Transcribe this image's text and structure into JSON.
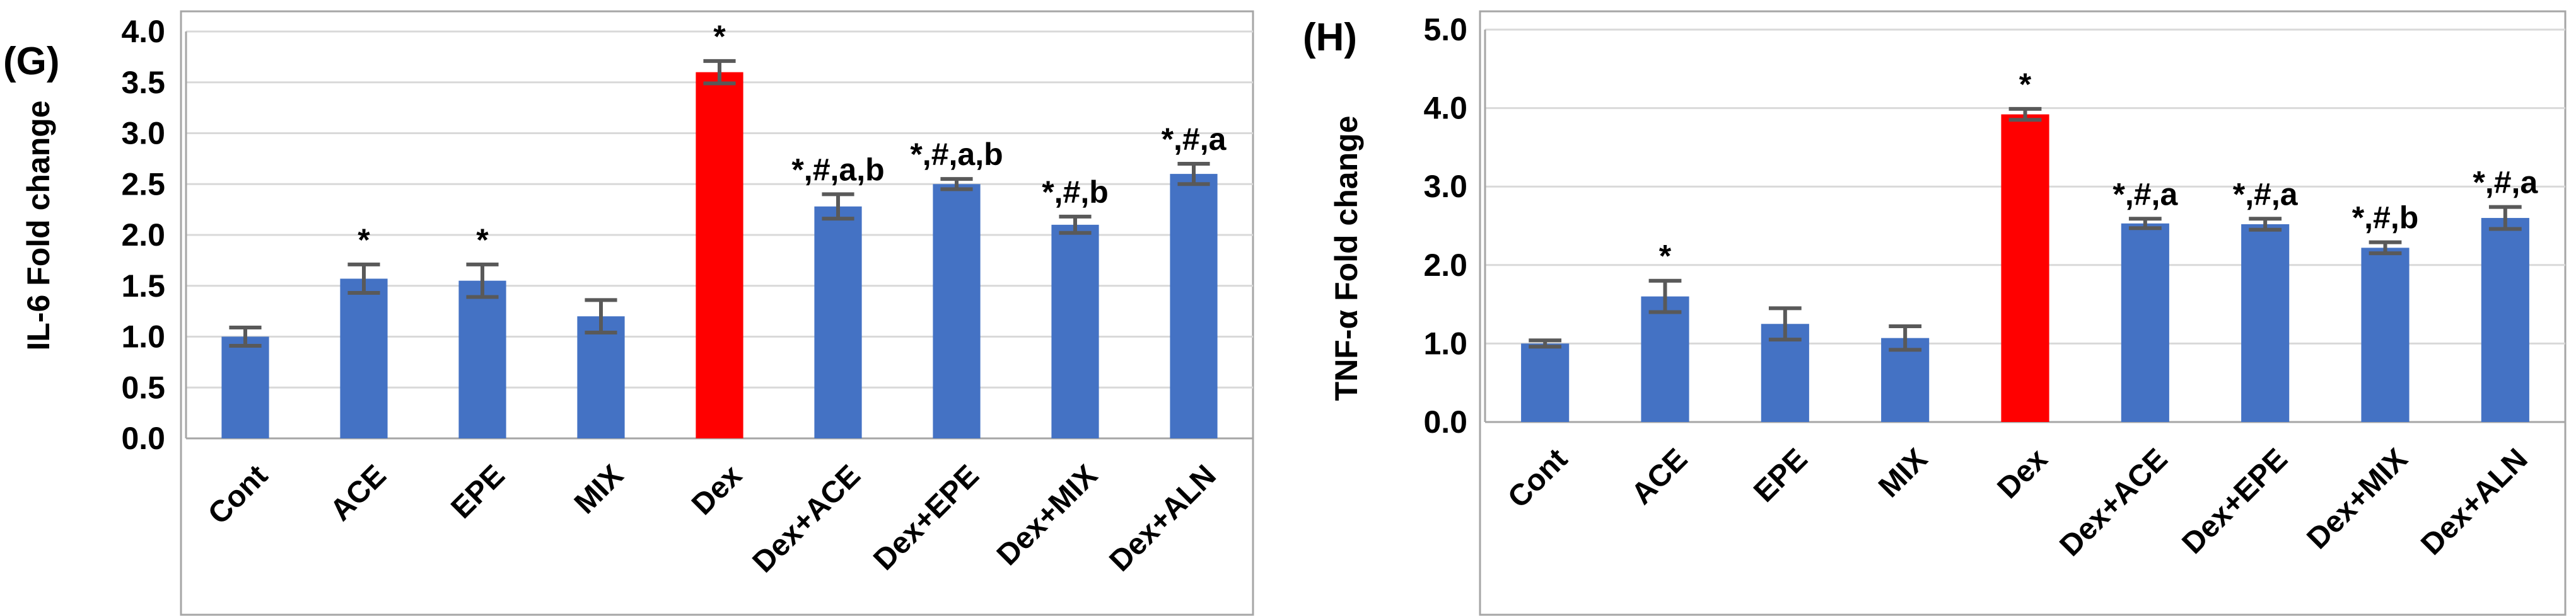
{
  "colors": {
    "bar": "#4472C4",
    "highlight": "#FF0000",
    "error_bar": "#595959",
    "grid": "#D9D9D9",
    "frame": "#A6A6A6"
  },
  "chart_data": [
    {
      "type": "bar",
      "panel_label": "(G)",
      "title": "",
      "xlabel": "",
      "ylabel": "IL-6 Fold change",
      "ylim": [
        0,
        4
      ],
      "yticks": [
        "0.0",
        "0.5",
        "1.0",
        "1.5",
        "2.0",
        "2.5",
        "3.0",
        "3.5",
        "4.0"
      ],
      "ytick_values": [
        0,
        0.5,
        1,
        1.5,
        2,
        2.5,
        3,
        3.5,
        4
      ],
      "grid": true,
      "categories": [
        "Cont",
        "ACE",
        "EPE",
        "MIX",
        "Dex",
        "Dex+ACE",
        "Dex+EPE",
        "Dex+MIX",
        "Dex+ALN"
      ],
      "values": [
        1.0,
        1.57,
        1.55,
        1.2,
        3.6,
        2.28,
        2.5,
        2.1,
        2.6
      ],
      "errors": [
        0.09,
        0.14,
        0.16,
        0.16,
        0.11,
        0.12,
        0.05,
        0.08,
        0.1
      ],
      "highlight_index": 4,
      "annotations": [
        "",
        "*",
        "*",
        "",
        "*",
        "*,#,a,b",
        "*,#,a,b",
        "*,#,b",
        "*,#,a"
      ]
    },
    {
      "type": "bar",
      "panel_label": "(H)",
      "title": "",
      "xlabel": "",
      "ylabel": "TNF-α Fold change",
      "ylim": [
        0,
        5
      ],
      "yticks": [
        "0.0",
        "1.0",
        "2.0",
        "3.0",
        "4.0",
        "5.0"
      ],
      "ytick_values": [
        0,
        1,
        2,
        3,
        4,
        5
      ],
      "grid": true,
      "categories": [
        "Cont",
        "ACE",
        "EPE",
        "MIX",
        "Dex",
        "Dex+ACE",
        "Dex+EPE",
        "Dex+MIX",
        "Dex+ALN"
      ],
      "values": [
        1.0,
        1.6,
        1.25,
        1.07,
        3.92,
        2.53,
        2.52,
        2.22,
        2.6
      ],
      "errors": [
        0.04,
        0.2,
        0.2,
        0.15,
        0.07,
        0.06,
        0.07,
        0.07,
        0.14
      ],
      "highlight_index": 4,
      "annotations": [
        "",
        "*",
        "",
        "",
        "*",
        "*,#,a",
        "*,#,a",
        "*,#,b",
        "*,#,a"
      ]
    }
  ]
}
